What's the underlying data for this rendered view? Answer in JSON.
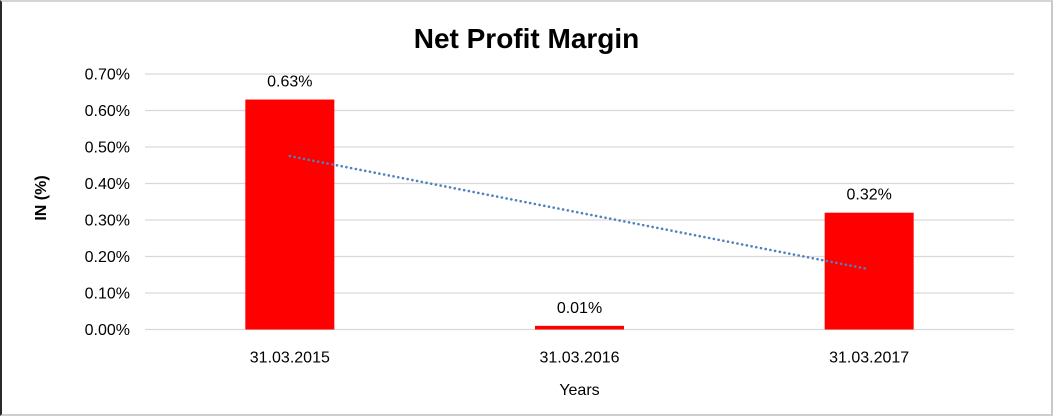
{
  "chart_data": {
    "type": "bar",
    "title": "Net Profit Margin",
    "xlabel": "Years",
    "ylabel": "IN (%)",
    "categories": [
      "31.03.2015",
      "31.03.2016",
      "31.03.2017"
    ],
    "series": [
      {
        "name": "Net Profit Margin",
        "values": [
          0.63,
          0.01,
          0.32
        ]
      }
    ],
    "data_labels": [
      "0.63%",
      "0.01%",
      "0.32%"
    ],
    "values_unit": "%",
    "ylim": [
      0,
      0.7
    ],
    "ytick_labels": [
      "0.00%",
      "0.10%",
      "0.20%",
      "0.30%",
      "0.40%",
      "0.50%",
      "0.60%",
      "0.70%"
    ],
    "grid": true,
    "legend": "none",
    "colors": {
      "bar": "#FF0000",
      "trendline": "#4E81BD",
      "gridline": "#D9D9D9",
      "text": "#000000",
      "background": "#FFFFFF"
    },
    "trendline": {
      "type": "linear",
      "style": "dotted",
      "start_value": 0.475,
      "end_value": 0.165
    }
  }
}
